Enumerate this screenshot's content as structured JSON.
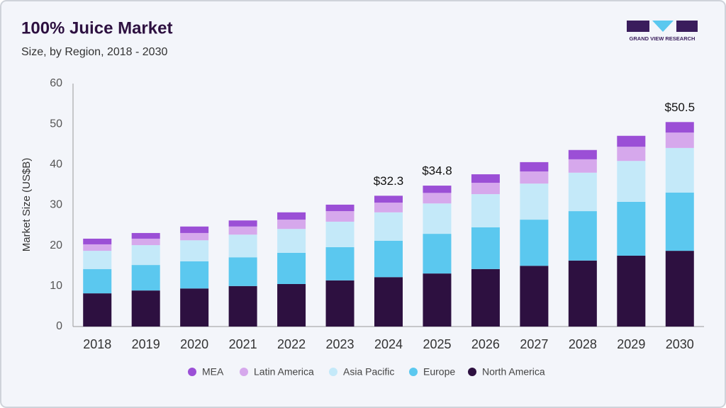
{
  "chart_data": {
    "type": "stacked_bar",
    "title": "100% Juice Market",
    "subtitle": "Size, by Region, 2018 - 2030",
    "logo_text": "GRAND VIEW RESEARCH",
    "y_label": "Market Size (US$B)",
    "categories": [
      "2018",
      "2019",
      "2020",
      "2021",
      "2022",
      "2023",
      "2024",
      "2025",
      "2026",
      "2027",
      "2028",
      "2029",
      "2030"
    ],
    "series": [
      {
        "name": "North America",
        "color": "#2d1040",
        "values": [
          8.2,
          8.9,
          9.4,
          10.0,
          10.5,
          11.4,
          12.2,
          13.1,
          14.2,
          15.0,
          16.3,
          17.5,
          18.7
        ]
      },
      {
        "name": "Europe",
        "color": "#5bc8ef",
        "values": [
          6.0,
          6.3,
          6.7,
          7.1,
          7.7,
          8.2,
          9.0,
          9.8,
          10.3,
          11.4,
          12.2,
          13.3,
          14.4
        ]
      },
      {
        "name": "Asia Pacific",
        "color": "#c4e9f9",
        "values": [
          4.5,
          4.9,
          5.2,
          5.6,
          5.9,
          6.3,
          7.0,
          7.5,
          8.2,
          8.9,
          9.5,
          10.1,
          11.0
        ]
      },
      {
        "name": "Latin America",
        "color": "#d6a8ec",
        "values": [
          1.6,
          1.6,
          1.8,
          2.0,
          2.3,
          2.6,
          2.4,
          2.6,
          2.8,
          3.0,
          3.3,
          3.5,
          3.8
        ]
      },
      {
        "name": "MEA",
        "color": "#9b4fd6",
        "values": [
          1.4,
          1.4,
          1.6,
          1.5,
          1.8,
          1.6,
          1.7,
          1.8,
          2.1,
          2.3,
          2.3,
          2.7,
          2.6
        ]
      }
    ],
    "totals": [
      null,
      null,
      null,
      null,
      null,
      null,
      32.3,
      34.8,
      null,
      null,
      null,
      null,
      50.5
    ],
    "total_labels": [
      null,
      null,
      null,
      null,
      null,
      null,
      "$32.3",
      "$34.8",
      null,
      null,
      null,
      null,
      "$50.5"
    ],
    "ylim": [
      0,
      60
    ],
    "yticks": [
      0,
      10,
      20,
      30,
      40,
      50,
      60
    ],
    "grid": false
  }
}
